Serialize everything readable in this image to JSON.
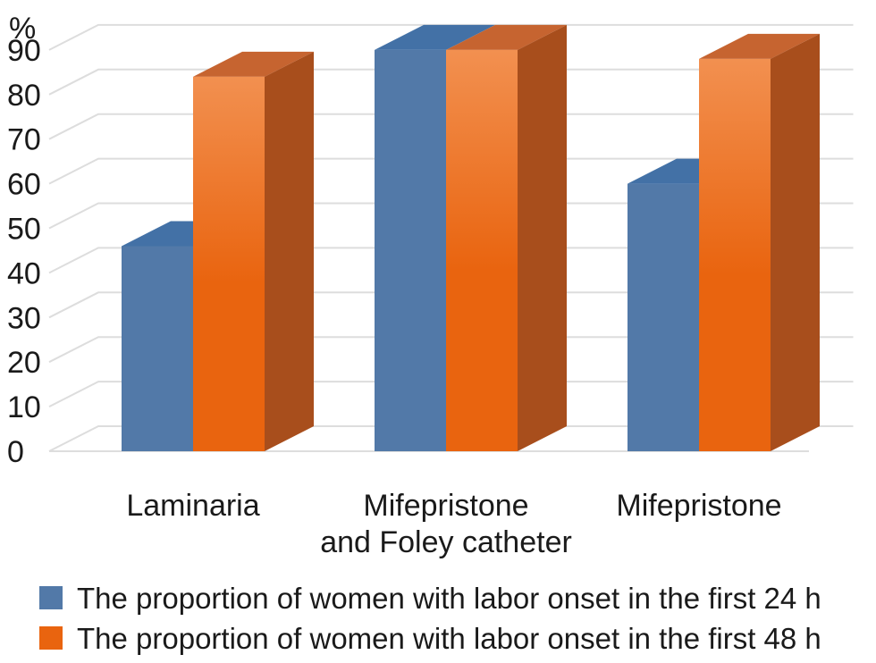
{
  "chart_data": {
    "type": "bar",
    "title": "",
    "xlabel": "",
    "ylabel": "%",
    "ylim": [
      0,
      90
    ],
    "yticks": [
      0,
      10,
      20,
      30,
      40,
      50,
      60,
      70,
      80,
      90
    ],
    "grid": true,
    "legend_position": "bottom",
    "categories": [
      [
        "Laminaria"
      ],
      [
        "Mifepristone",
        "and Foley catheter"
      ],
      [
        "Mifepristone"
      ]
    ],
    "series": [
      {
        "name": "The proportion of women with labor onset in the first 24 h",
        "values": [
          46,
          90,
          60
        ]
      },
      {
        "name": "The proportion of women with labor onset in the first 48 h",
        "values": [
          84,
          90,
          88
        ]
      }
    ]
  },
  "colors": {
    "series_24h_front": "#5279a8",
    "series_24h_top": "#4371a6",
    "series_48h_front_top": "#f29050",
    "series_48h_front_bottom": "#e9640f",
    "series_48h_top": "#c66430",
    "series_48h_side": "#a84e1c",
    "grid": "#dddddd"
  }
}
